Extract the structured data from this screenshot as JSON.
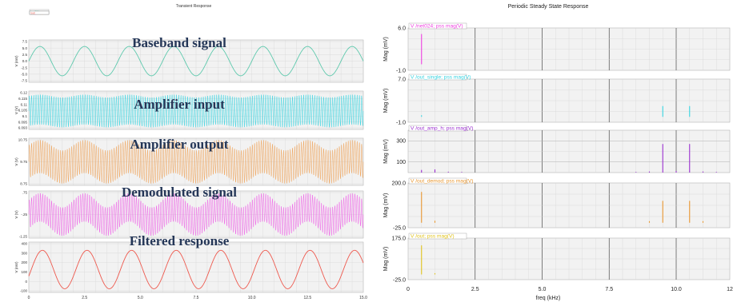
{
  "colors": {
    "baseband": "#5ec9ad",
    "amp_input": "#29d3e0",
    "amp_output": "#ee9b4a",
    "demod": "#ee55e6",
    "filtered": "#ee5a4f",
    "pss_net024": "#ee3fe0",
    "pss_out_single": "#36d3e0",
    "pss_out_amp_h": "#9a2fcf",
    "pss_out_demod": "#e8962e",
    "pss_out": "#e0c21a",
    "overlay_text": "#243657",
    "panel_bg": "#f2f2f2",
    "grid": "#d4d4d4",
    "tab_bg": "#ffffff"
  },
  "chart_data": [
    {
      "type": "line",
      "title": "Transient Response",
      "xlim": [
        0,
        15
      ],
      "x_ticks": [
        "0",
        "2.5",
        "5.0",
        "7.5",
        "10.0",
        "12.5",
        "15.0"
      ],
      "grid": true,
      "panels": [
        {
          "overlay_label": "Baseband signal",
          "trace_tab": "/net024",
          "ylabel": "V (mV)",
          "ylim": [
            -7.5,
            7.5
          ],
          "y_ticks": [
            "7.5",
            "5.0",
            "2.5",
            "0.0",
            "-2.5",
            "-5.0",
            "-7.5"
          ],
          "signal": {
            "kind": "sine",
            "amplitude": 5.2,
            "offset": 0,
            "frequency_khz": 0.5,
            "phase_deg": 0
          }
        },
        {
          "overlay_label": "Amplifier input",
          "trace_tab": "/out_single",
          "ylabel": "V (V)",
          "ylim": [
            6.093,
            6.12
          ],
          "y_ticks": [
            "6.12",
            "6.115",
            "6.11",
            "6.105",
            "6.1",
            "6.095",
            "6.093"
          ],
          "signal": {
            "kind": "carrier",
            "center": 6.106,
            "carrier_amplitude": 0.0105,
            "envelope_depth": 0.001,
            "envelope_frequency_khz": 0.5,
            "carrier_frequency_khz": 10
          }
        },
        {
          "overlay_label": "Amplifier output",
          "trace_tab": "/out_amp_h",
          "ylabel": "V (V)",
          "ylim": [
            8.75,
            10.75
          ],
          "y_ticks": [
            "10.75",
            "9.75",
            "8.75"
          ],
          "signal": {
            "kind": "carrier",
            "center": 9.75,
            "carrier_amplitude": 0.7,
            "envelope_depth": 0.22,
            "envelope_frequency_khz": 0.5,
            "carrier_frequency_khz": 10
          }
        },
        {
          "overlay_label": "Demodulated signal",
          "trace_tab": "/out_demod",
          "ylabel": "V (V)",
          "ylim": [
            -1.25,
            0.75
          ],
          "y_ticks": [
            ".75",
            "-.25",
            "-1.25"
          ],
          "signal": {
            "kind": "carrier",
            "center": -0.25,
            "carrier_amplitude": 0.6,
            "envelope_depth": 0.3,
            "envelope_frequency_khz": 0.5,
            "carrier_frequency_khz": 10
          }
        },
        {
          "overlay_label": "Filtered response",
          "trace_tab": "/out",
          "ylabel": "V (mV)",
          "ylim": [
            -150,
            400
          ],
          "y_ticks": [
            "400",
            "300",
            "200",
            "100",
            "0",
            "-100"
          ],
          "signal": {
            "kind": "sine",
            "amplitude": 210,
            "offset": 100,
            "frequency_khz": 0.5,
            "phase_deg": -20
          }
        }
      ]
    },
    {
      "type": "bar",
      "title": "Periodic Steady State Response",
      "xlabel": "freq (kHz)",
      "xlim": [
        0,
        12
      ],
      "x_ticks": [
        "0",
        "2.5",
        "5.0",
        "7.5",
        "10.0",
        "12"
      ],
      "grid": true,
      "panels": [
        {
          "trace_tab": "V /net024; pss mag(V)",
          "ylabel": "Mag (mV)",
          "ylim": [
            -1.0,
            6.0
          ],
          "y_ticks": [
            "6.0",
            "-1.0"
          ],
          "x": [
            0.5
          ],
          "values": [
            5.0
          ]
        },
        {
          "trace_tab": "V /out_single; pss mag(V)",
          "ylabel": "Mag (mV)",
          "ylim": [
            -1.0,
            7.0
          ],
          "y_ticks": [
            "7.0",
            "-1.0"
          ],
          "x": [
            0.5,
            9.5,
            10.5
          ],
          "values": [
            0.3,
            2.0,
            2.0
          ]
        },
        {
          "trace_tab": "V /out_amp_h; pss mag(V)",
          "ylabel": "Mag (mV)",
          "ylim": [
            0,
            400
          ],
          "y_ticks": [
            "300",
            "100"
          ],
          "x": [
            0.5,
            1.0,
            1.5,
            2.0,
            8.5,
            9.0,
            9.5,
            10.0,
            10.5,
            11.0,
            11.5
          ],
          "values": [
            25,
            30,
            8,
            6,
            6,
            10,
            270,
            15,
            270,
            10,
            6
          ]
        },
        {
          "trace_tab": "V /out_demod; pss mag(V)",
          "ylabel": "Mag (mV)",
          "ylim": [
            -25.0,
            200.0
          ],
          "y_ticks": [
            "200.0",
            "-25.0"
          ],
          "x": [
            0.5,
            1.0,
            9.0,
            9.5,
            10.5,
            11.0
          ],
          "values": [
            155,
            10,
            8,
            110,
            110,
            8
          ]
        },
        {
          "trace_tab": "V /out; pss mag(V)",
          "ylabel": "Mag (mV)",
          "ylim": [
            -25.0,
            175.0
          ],
          "y_ticks": [
            "175.0",
            "-25.0"
          ],
          "x": [
            0.5,
            1.0
          ],
          "values": [
            140,
            6
          ]
        }
      ]
    }
  ]
}
